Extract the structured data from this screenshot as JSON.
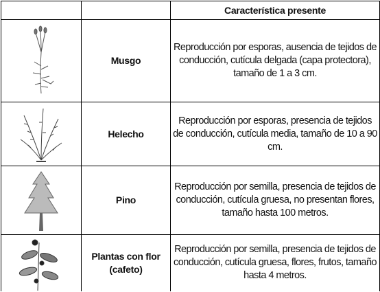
{
  "table": {
    "header": [
      "",
      "",
      "Característica presente"
    ],
    "rows": [
      {
        "name": "Musgo",
        "description": "Reproducción por esporas, ausencia de tejidos de conducción, cutícula delgada (capa protectora), tamaño de 1 a 3 cm."
      },
      {
        "name": "Helecho",
        "description": "Reproducción por esporas, presencia de tejidos de conducción, cutícula media, tamaño de 10 a 90 cm."
      },
      {
        "name": "Pino",
        "description": "Reproducción por semilla, presencia de tejidos de conducción, cutícula gruesa, no presentan flores, tamaño hasta 100 metros."
      },
      {
        "name": "Plantas con flor (cafeto)",
        "description": "Reproducción por semilla, presencia de tejidos de conducción, cutícula gruesa, flores, frutos, tamaño hasta 4 metros."
      }
    ]
  }
}
